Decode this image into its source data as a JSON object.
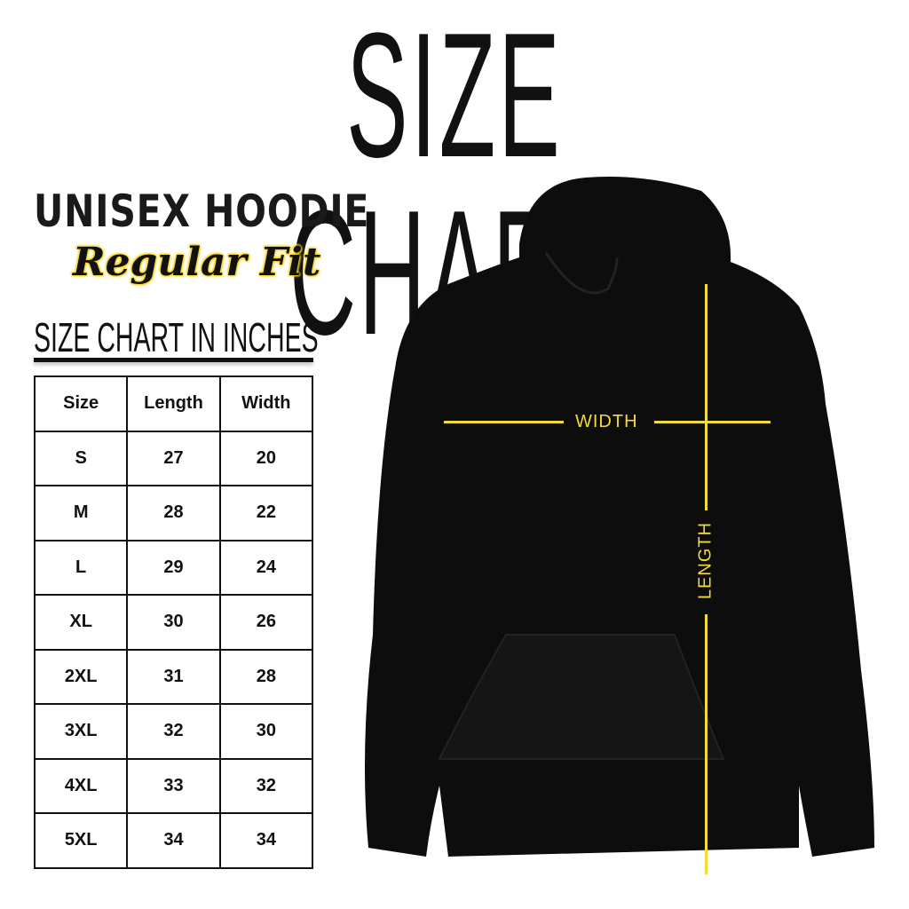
{
  "title": "SIZE CHART",
  "product": "UNISEX HOODIE",
  "fit": "Regular Fit",
  "table_caption": "SIZE CHART IN INCHES",
  "columns": [
    "Size",
    "Length",
    "Width"
  ],
  "rows": [
    [
      "S",
      "27",
      "20"
    ],
    [
      "M",
      "28",
      "22"
    ],
    [
      "L",
      "29",
      "24"
    ],
    [
      "XL",
      "30",
      "26"
    ],
    [
      "2XL",
      "31",
      "28"
    ],
    [
      "3XL",
      "32",
      "30"
    ],
    [
      "4XL",
      "33",
      "32"
    ],
    [
      "5XL",
      "34",
      "34"
    ]
  ],
  "diagram": {
    "width_label": "WIDTH",
    "length_label": "LENGTH",
    "line_color": "#f2dc3c",
    "garment_color": "#0d0d0d"
  }
}
